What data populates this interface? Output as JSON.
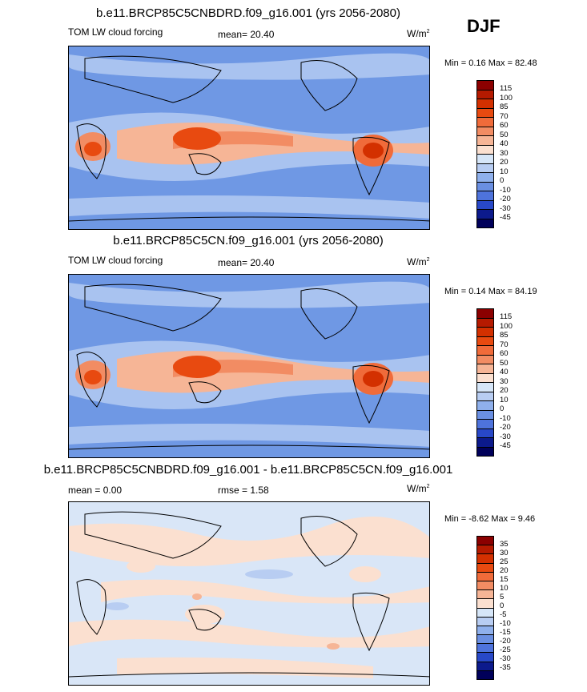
{
  "season": "DJF",
  "panels": [
    {
      "title": "b.e11.BRCP85C5CNBDRD.f09_g16.001 (yrs 2056-2080)",
      "left_label": "TOM LW cloud forcing",
      "center_label": "mean=  20.40",
      "units": "W/m",
      "units_sup": "2",
      "minmax": "Min =   0.16 Max =  82.48",
      "levels": [
        "115",
        "100",
        "85",
        "70",
        "60",
        "50",
        "40",
        "30",
        "20",
        "10",
        "0",
        "-10",
        "-20",
        "-30",
        "-45"
      ]
    },
    {
      "title": "b.e11.BRCP85C5CN.f09_g16.001 (yrs 2056-2080)",
      "left_label": "TOM LW cloud forcing",
      "center_label": "mean=  20.40",
      "units": "W/m",
      "units_sup": "2",
      "minmax": "Min =  0.14 Max =  84.19",
      "levels": [
        "115",
        "100",
        "85",
        "70",
        "60",
        "50",
        "40",
        "30",
        "20",
        "10",
        "0",
        "-10",
        "-20",
        "-30",
        "-45"
      ]
    },
    {
      "title": "b.e11.BRCP85C5CNBDRD.f09_g16.001 - b.e11.BRCP85C5CN.f09_g16.001",
      "left_label": "mean =   0.00",
      "center_label": "rmse =   1.58",
      "units": "W/m",
      "units_sup": "2",
      "minmax": "Min =  -8.62 Max =   9.46",
      "levels": [
        "35",
        "30",
        "25",
        "20",
        "15",
        "10",
        "5",
        "0",
        "-5",
        "-10",
        "-15",
        "-20",
        "-25",
        "-30",
        "-35"
      ]
    }
  ],
  "colors": {
    "colorbar": [
      "#8b0000",
      "#b51a00",
      "#d33000",
      "#e84a10",
      "#f06b3a",
      "#f28c63",
      "#f6b596",
      "#fbe0d0",
      "#d6e6f8",
      "#b8cdf2",
      "#8fb0ec",
      "#6a8fe2",
      "#4e73dc",
      "#2848c8",
      "#0c1a8c",
      "#00005a"
    ],
    "ocean_main": "#6f98e4",
    "ocean_diff": "#d9e6f7",
    "land_outline": "#000000"
  }
}
